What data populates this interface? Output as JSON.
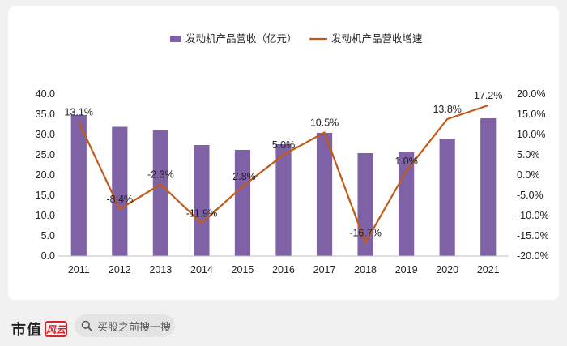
{
  "chart_data": {
    "type": "bar+line",
    "categories": [
      "2011",
      "2012",
      "2013",
      "2014",
      "2015",
      "2016",
      "2017",
      "2018",
      "2019",
      "2020",
      "2021"
    ],
    "series": [
      {
        "name": "发动机产品营收（亿元）",
        "type": "bar",
        "axis": "left",
        "values": [
          34.8,
          31.9,
          31.1,
          27.4,
          26.2,
          27.6,
          30.4,
          25.4,
          25.7,
          29.0,
          34.0
        ]
      },
      {
        "name": "发动机产品营收增速",
        "type": "line",
        "axis": "right",
        "values": [
          13.1,
          -8.4,
          -2.3,
          -11.9,
          -2.8,
          5.0,
          10.5,
          -16.7,
          1.0,
          13.8,
          17.2
        ],
        "labels": [
          "13.1%",
          "-8.4%",
          "-2.3%",
          "-11.9%",
          "-2.8%",
          "5.0%",
          "10.5%",
          "-16.7%",
          "1.0%",
          "13.8%",
          "17.2%"
        ]
      }
    ],
    "y_left": {
      "ylim": [
        0,
        40
      ],
      "ticks": [
        "0.0",
        "5.0",
        "10.0",
        "15.0",
        "20.0",
        "25.0",
        "30.0",
        "35.0",
        "40.0"
      ]
    },
    "y_right": {
      "ylim": [
        -20,
        20
      ],
      "ticks": [
        "-20.0%",
        "-15.0%",
        "-10.0%",
        "-5.0%",
        "0.0%",
        "5.0%",
        "10.0%",
        "15.0%",
        "20.0%"
      ]
    },
    "legend_position": "top",
    "colors": {
      "bar": "#7f62a6",
      "line": "#c15a17"
    }
  },
  "footer": {
    "brand": "市值",
    "logo": "风云",
    "search_placeholder": "买股之前搜一搜"
  }
}
